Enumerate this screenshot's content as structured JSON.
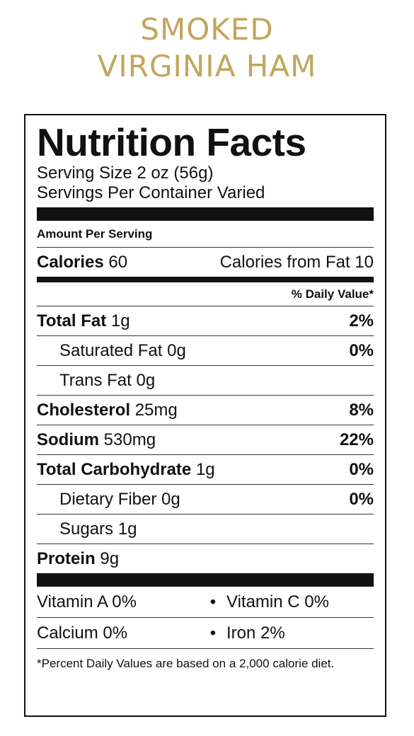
{
  "product": {
    "title_line1": "SMOKED",
    "title_line2": "VIRGINIA HAM"
  },
  "label": {
    "title": "Nutrition Facts",
    "serving_size": "Serving Size 2 oz (56g)",
    "servings_per_container": "Servings Per Container Varied",
    "amount_per_serving": "Amount Per Serving",
    "calories_label": "Calories",
    "calories_value": "60",
    "calories_from_fat": "Calories from Fat 10",
    "daily_value_header": "% Daily Value*",
    "nutrients": [
      {
        "name": "Total Fat",
        "amount": "1g",
        "dv": "2%"
      },
      {
        "name": "Saturated Fat",
        "amount": "0g",
        "dv": "0%"
      },
      {
        "name": "Trans Fat",
        "amount": "0g",
        "dv": ""
      },
      {
        "name": "Cholesterol",
        "amount": "25mg",
        "dv": "8%"
      },
      {
        "name": "Sodium",
        "amount": "530mg",
        "dv": "22%"
      },
      {
        "name": "Total Carbohydrate",
        "amount": "1g",
        "dv": "0%"
      },
      {
        "name": "Dietary Fiber",
        "amount": "0g",
        "dv": "0%"
      },
      {
        "name": "Sugars",
        "amount": "1g",
        "dv": ""
      },
      {
        "name": "Protein",
        "amount": "9g",
        "dv": ""
      }
    ],
    "vitamins": [
      {
        "left": "Vitamin A 0%",
        "right": "Vitamin C 0%"
      },
      {
        "left": "Calcium 0%",
        "right": "Iron 2%"
      }
    ],
    "bullet": "•",
    "footnote": "*Percent Daily Values are based on a 2,000 calorie diet."
  }
}
